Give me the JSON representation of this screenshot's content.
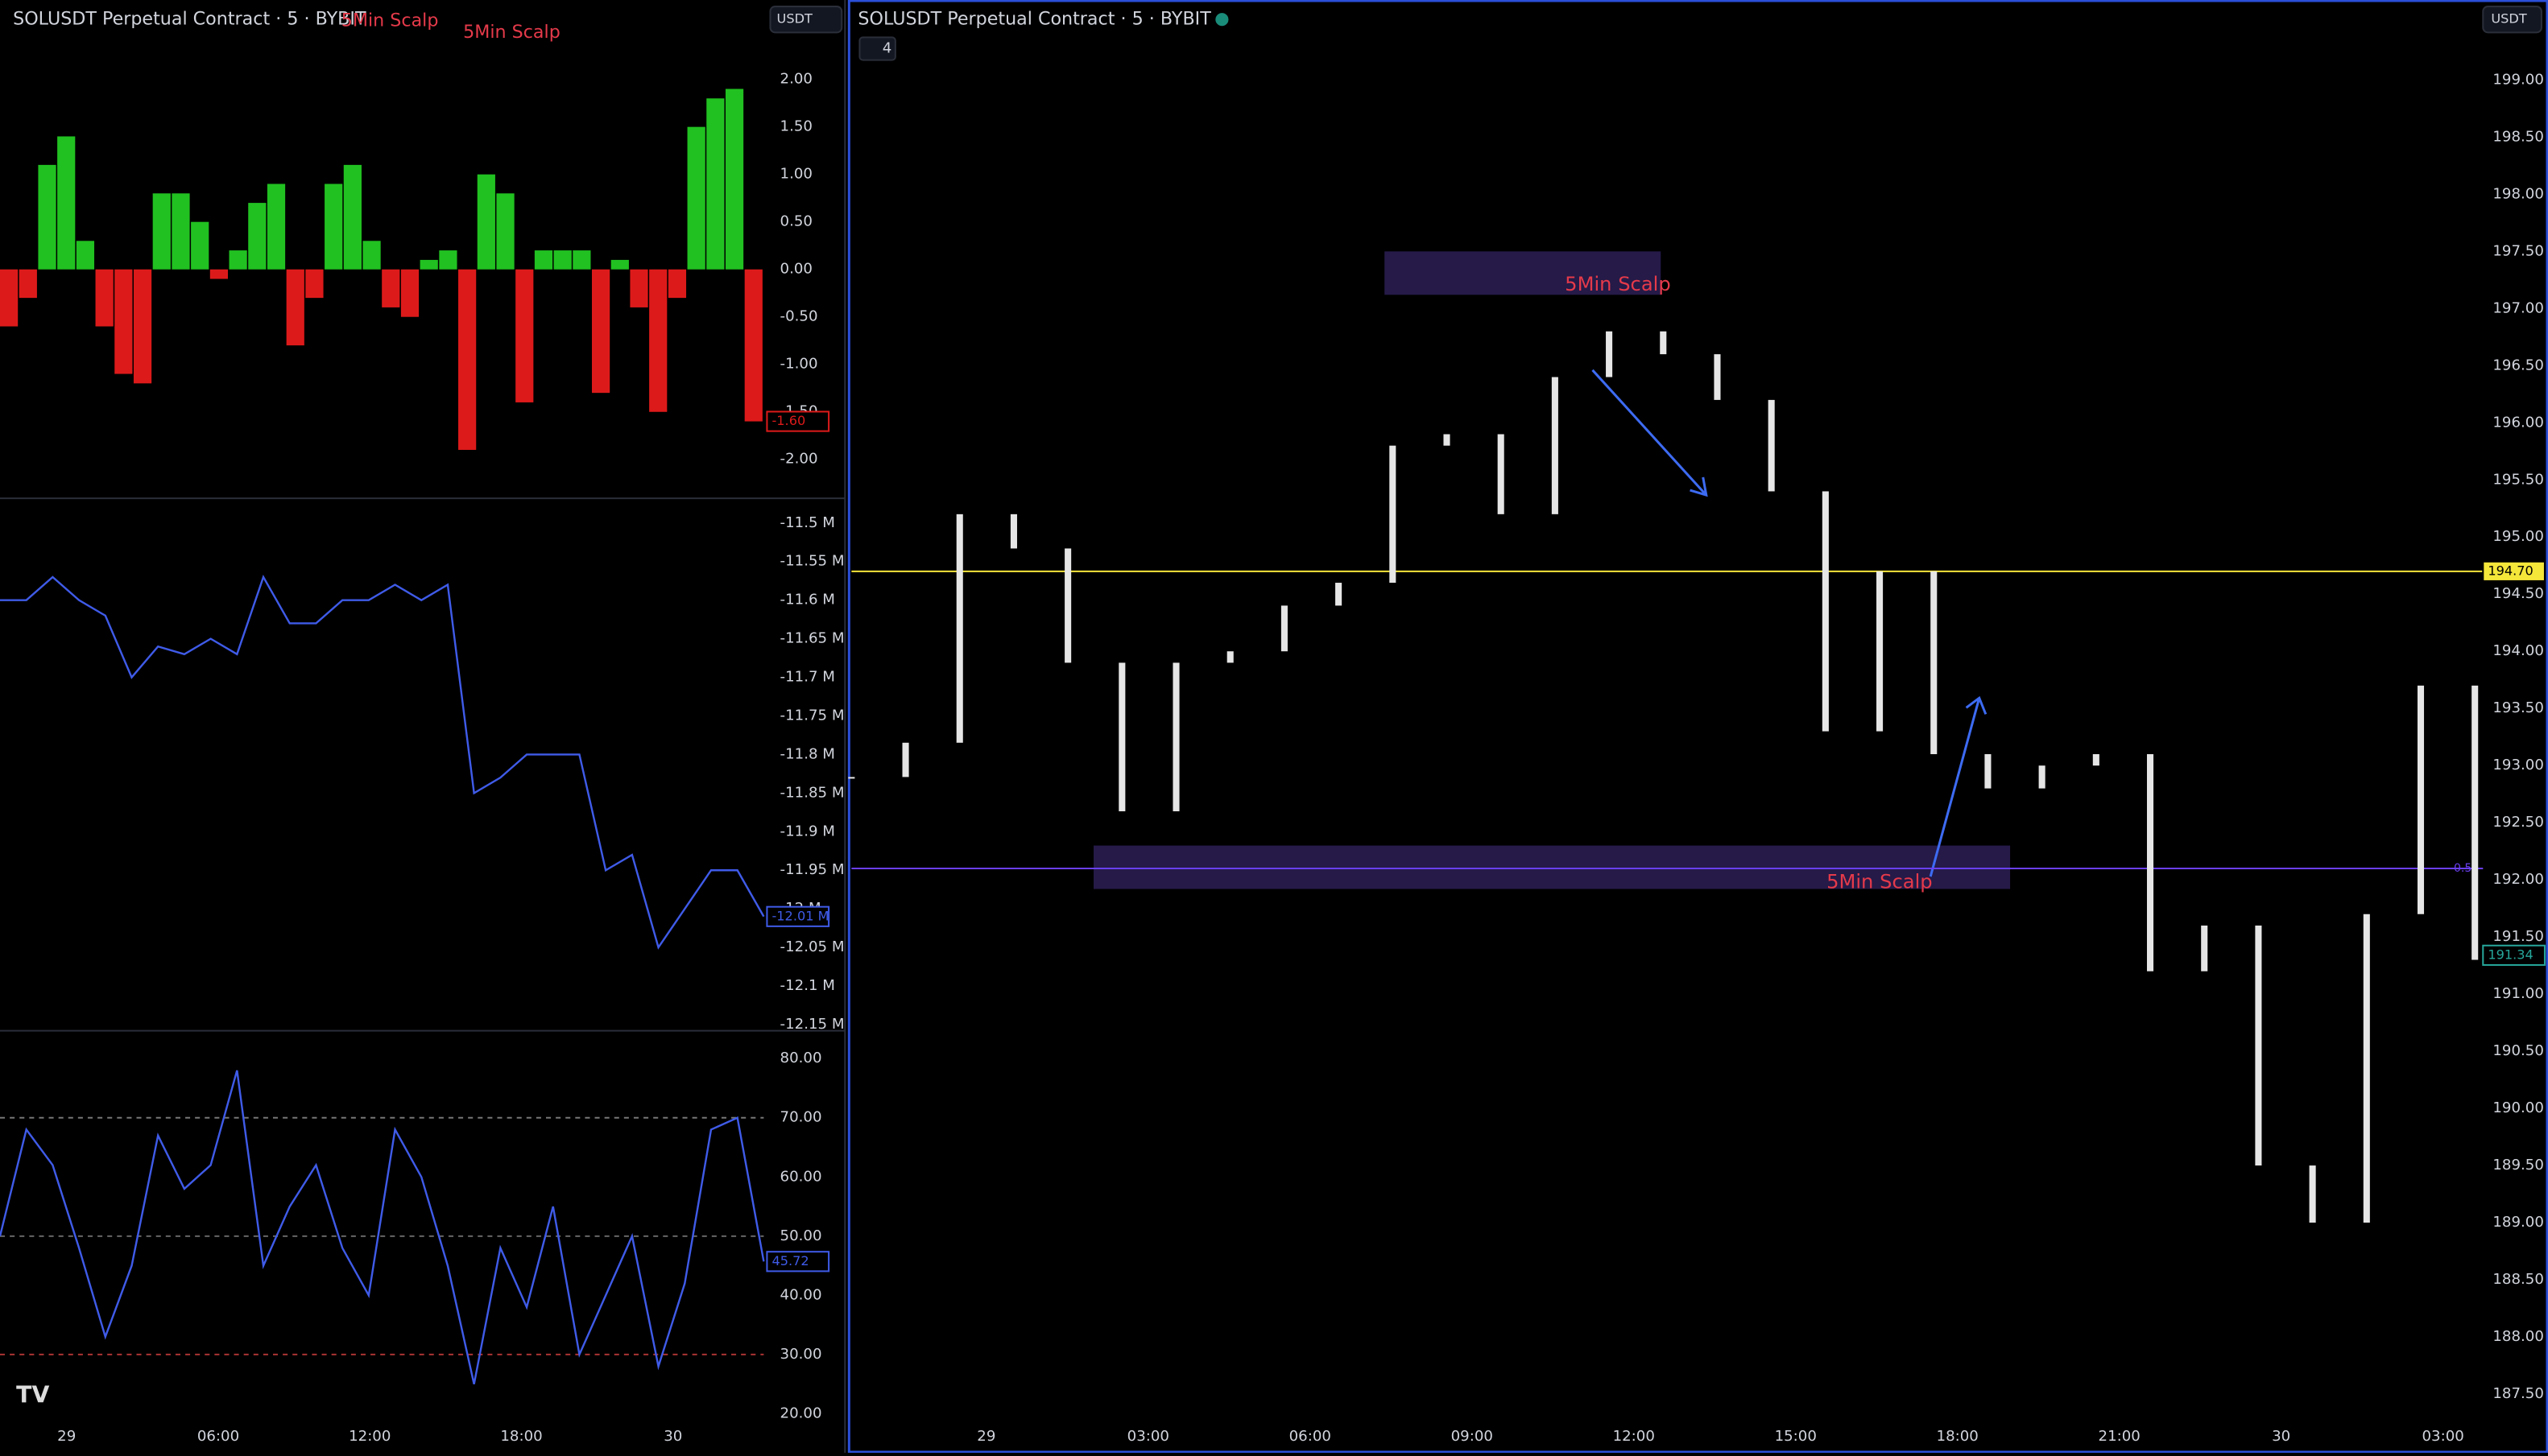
{
  "left": {
    "title": "SOLUSDT Perpetual Contract · 5 · BYBIT",
    "currency": "USDT",
    "scalp_labels": [
      "5Min Scalp",
      "5Min Scalp"
    ],
    "xticks": [
      "29",
      "06:00",
      "12:00",
      "18:00",
      "30"
    ],
    "osc": {
      "ylim": [
        -2.41,
        2.46
      ],
      "yticks": [
        {
          "value": 2,
          "label": "2.00"
        },
        {
          "value": 1.5,
          "label": "1.50"
        },
        {
          "value": 1,
          "label": "1.00"
        },
        {
          "value": 0.5,
          "label": "0.50"
        },
        {
          "value": 0,
          "label": "0.00"
        },
        {
          "value": -0.5,
          "label": "-0.50"
        },
        {
          "value": -1,
          "label": "-1.00"
        },
        {
          "value": -1.5,
          "label": "-1.50"
        },
        {
          "value": -2,
          "label": "-2.00"
        }
      ],
      "values": [
        -0.6,
        -0.3,
        1.1,
        1.4,
        0.3,
        -0.6,
        -1.1,
        -1.2,
        0.8,
        0.8,
        0.5,
        -0.1,
        0.2,
        0.7,
        0.9,
        -0.8,
        -0.3,
        0.9,
        1.1,
        0.3,
        -0.4,
        -0.5,
        0.1,
        0.2,
        -1.9,
        1,
        0.8,
        -1.4,
        0.2,
        0.2,
        0.2,
        -1.3,
        0.1,
        -0.4,
        -1.5,
        -0.3,
        1.5,
        1.8,
        1.9,
        -1.6
      ],
      "up_color": "#21c121",
      "down_color": "#dd1a1a",
      "last": {
        "value": -1.6,
        "label": "-1.60"
      }
    },
    "obv": {
      "ylim": [
        -12.158,
        -11.468
      ],
      "color": "#3f5be8",
      "yticks": [
        {
          "value": -11.5,
          "label": "-11.5 M"
        },
        {
          "value": -11.55,
          "label": "-11.55 M"
        },
        {
          "value": -11.6,
          "label": "-11.6 M"
        },
        {
          "value": -11.65,
          "label": "-11.65 M"
        },
        {
          "value": -11.7,
          "label": "-11.7 M"
        },
        {
          "value": -11.75,
          "label": "-11.75 M"
        },
        {
          "value": -11.8,
          "label": "-11.8 M"
        },
        {
          "value": -11.85,
          "label": "-11.85 M"
        },
        {
          "value": -11.9,
          "label": "-11.9 M"
        },
        {
          "value": -11.95,
          "label": "-11.95 M"
        },
        {
          "value": -12,
          "label": "-12 M"
        },
        {
          "value": -12.05,
          "label": "-12.05 M"
        },
        {
          "value": -12.1,
          "label": "-12.1 M"
        },
        {
          "value": -12.15,
          "label": "-12.15 M"
        }
      ],
      "values": [
        -11.6,
        -11.6,
        -11.57,
        -11.6,
        -11.62,
        -11.7,
        -11.66,
        -11.67,
        -11.65,
        -11.67,
        -11.57,
        -11.63,
        -11.63,
        -11.6,
        -11.6,
        -11.58,
        -11.6,
        -11.58,
        -11.85,
        -11.83,
        -11.8,
        -11.8,
        -11.8,
        -11.95,
        -11.93,
        -12.05,
        -12,
        -11.95,
        -11.95,
        -12.01
      ],
      "last": {
        "value": -12.01,
        "label": "-12.01 M"
      }
    },
    "rsi": {
      "ylim": [
        13.4,
        84.7
      ],
      "color": "#3f5be8",
      "yticks": [
        {
          "value": 80,
          "label": "80.00"
        },
        {
          "value": 70,
          "label": "70.00"
        },
        {
          "value": 60,
          "label": "60.00"
        },
        {
          "value": 50,
          "label": "50.00"
        },
        {
          "value": 40,
          "label": "40.00"
        },
        {
          "value": 30,
          "label": "30.00"
        },
        {
          "value": 20,
          "label": "20.00"
        }
      ],
      "levels": [
        70,
        50,
        30
      ],
      "values": [
        50,
        68,
        62,
        48,
        33,
        45,
        67,
        58,
        62,
        78,
        45,
        55,
        62,
        48,
        40,
        68,
        60,
        45,
        25,
        48,
        38,
        55,
        30,
        40,
        50,
        28,
        42,
        68,
        70,
        45.72
      ],
      "last": {
        "value": 45.72,
        "label": "45.72"
      }
    }
  },
  "main": {
    "title": "SOLUSDT Perpetual Contract · 5 · BYBIT",
    "currency": "USDT",
    "collapsed": "4",
    "ylim": [
      187.27,
      199.7
    ],
    "yticks": [
      {
        "value": 199,
        "label": "199.00"
      },
      {
        "value": 198.5,
        "label": "198.50"
      },
      {
        "value": 198,
        "label": "198.00"
      },
      {
        "value": 197.5,
        "label": "197.50"
      },
      {
        "value": 197,
        "label": "197.00"
      },
      {
        "value": 196.5,
        "label": "196.50"
      },
      {
        "value": 196,
        "label": "196.00"
      },
      {
        "value": 195.5,
        "label": "195.50"
      },
      {
        "value": 195,
        "label": "195.00"
      },
      {
        "value": 194.5,
        "label": "194.50"
      },
      {
        "value": 194,
        "label": "194.00"
      },
      {
        "value": 193.5,
        "label": "193.50"
      },
      {
        "value": 193,
        "label": "193.00"
      },
      {
        "value": 192.5,
        "label": "192.50"
      },
      {
        "value": 192,
        "label": "192.00"
      },
      {
        "value": 191.5,
        "label": "191.50"
      },
      {
        "value": 191,
        "label": "191.00"
      },
      {
        "value": 190.5,
        "label": "190.50"
      },
      {
        "value": 190,
        "label": "190.00"
      },
      {
        "value": 189.5,
        "label": "189.50"
      },
      {
        "value": 189,
        "label": "189.00"
      },
      {
        "value": 188.5,
        "label": "188.50"
      },
      {
        "value": 188,
        "label": "188.00"
      },
      {
        "value": 187.5,
        "label": "187.50"
      }
    ],
    "xticks": [
      "29",
      "03:00",
      "06:00",
      "09:00",
      "12:00",
      "15:00",
      "18:00",
      "21:00",
      "30",
      "03:00"
    ],
    "closes": [
      192.9,
      193.2,
      195.2,
      194.9,
      193.9,
      192.6,
      193.9,
      194,
      194.4,
      194.6,
      195.8,
      195.9,
      195.2,
      196.4,
      196.8,
      196.6,
      196.2,
      195.4,
      193.3,
      194.7,
      193.1,
      192.8,
      193,
      193.1,
      191.2,
      191.6,
      189.5,
      189,
      191.7,
      193.7,
      191.3
    ],
    "candle_color": "#e6e6e6",
    "hline": {
      "value": 194.7,
      "label": "194.70",
      "color": "#f5e63a"
    },
    "fib": {
      "value": 192.1,
      "label": "0.5",
      "color": "#6a3ff0"
    },
    "last": {
      "value": 191.34,
      "label": "191.34"
    },
    "zones": [
      {
        "top": 197.5,
        "bottom": 197.12,
        "label": "5Min Scalp"
      },
      {
        "top": 192.3,
        "bottom": 191.92,
        "label": "5Min Scalp"
      }
    ]
  }
}
